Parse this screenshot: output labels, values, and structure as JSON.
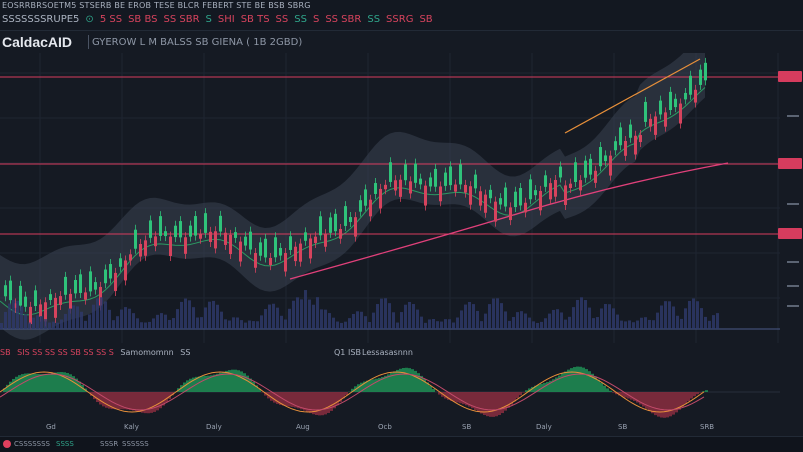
{
  "topbar": {
    "row1": "EOSRRBRSOETM5 STSERB BE EROB TESE BLCR FEBERT STE BE  BSB SBRG",
    "row2": [
      {
        "text": "SSSSSSSRUPE5",
        "color": "#aab2c0"
      },
      {
        "text": "⊙",
        "color": "#2fa58b"
      },
      {
        "text": "5 SS",
        "color": "#d6435d"
      },
      {
        "text": "SB BS",
        "color": "#d6435d"
      },
      {
        "text": "SS SBR",
        "color": "#d6435d"
      },
      {
        "text": "S",
        "color": "#2fa58b"
      },
      {
        "text": "SHI",
        "color": "#d6435d"
      },
      {
        "text": "SB TS",
        "color": "#d6435d"
      },
      {
        "text": "SS",
        "color": "#d6435d"
      },
      {
        "text": "SS",
        "color": "#2fa58b"
      },
      {
        "text": "S",
        "color": "#d6435d"
      },
      {
        "text": "SS SBR",
        "color": "#d6435d"
      },
      {
        "text": "SS",
        "color": "#2fa58b"
      },
      {
        "text": "SSRG",
        "color": "#d6435d"
      },
      {
        "text": "SB",
        "color": "#d6435d"
      }
    ]
  },
  "title": {
    "symbol": "CaldacAID",
    "description": "GYEROW L M BALSS SB GIENA ( 1B 2GBD)"
  },
  "price_labels": [
    "",
    "",
    "",
    "",
    ""
  ],
  "indicator": {
    "label1": "SB",
    "label2": "SIS SS SS SS SB SS SS S",
    "label3": "Samomomnn",
    "label4": "SS",
    "label5": "Q1",
    "label6": "ISB",
    "label7": "Lessasasnnn"
  },
  "xaxis": [
    "Gd",
    "Kaly",
    "Daly",
    "Aug",
    "Ocb",
    "SB",
    "Daly",
    "SB",
    "SRB"
  ],
  "bottombar": {
    "item1": "CSSSSSSS",
    "item2": "SSSS",
    "item3": "SSSR",
    "item4": "SSSSSS"
  },
  "colors": {
    "bull": "#2fc27a",
    "bear": "#d6435d",
    "accent_orange": "#e8903a",
    "accent_pink": "#e0407a",
    "label_red": "#d63c5e"
  }
}
